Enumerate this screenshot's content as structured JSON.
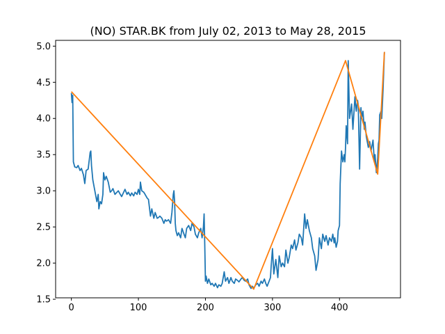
{
  "chart_data": {
    "type": "line",
    "title": "(NO) STAR.BK from July 02, 2013 to May 28, 2015",
    "xlabel": "",
    "ylabel": "",
    "xlim": [
      -23.5,
      491
    ],
    "ylim": [
      1.52,
      5.08
    ],
    "xticks": [
      0,
      100,
      200,
      300,
      400
    ],
    "yticks": [
      1.5,
      2.0,
      2.5,
      3.0,
      3.5,
      4.0,
      4.5,
      5.0
    ],
    "ytick_labels": [
      "1.5",
      "2.0",
      "2.5",
      "3.0",
      "3.5",
      "4.0",
      "4.5",
      "5.0"
    ],
    "grid": false,
    "legend": "none",
    "series": [
      {
        "color": "#1f77b4",
        "x": [
          0,
          1,
          2,
          3,
          5,
          8,
          10,
          13,
          15,
          18,
          20,
          22,
          25,
          27,
          28,
          29,
          30,
          32,
          35,
          38,
          40,
          41,
          43,
          45,
          47,
          48,
          50,
          52,
          55,
          58,
          60,
          62,
          65,
          68,
          70,
          73,
          75,
          78,
          80,
          83,
          85,
          88,
          90,
          93,
          95,
          98,
          100,
          102,
          103,
          105,
          108,
          110,
          113,
          115,
          118,
          120,
          123,
          125,
          128,
          130,
          132,
          135,
          138,
          140,
          142,
          145,
          148,
          150,
          152,
          153,
          154,
          155,
          156,
          158,
          160,
          163,
          165,
          168,
          170,
          172,
          175,
          178,
          180,
          183,
          185,
          188,
          190,
          193,
          195,
          197,
          198,
          199,
          200,
          201,
          203,
          205,
          208,
          210,
          213,
          215,
          218,
          220,
          223,
          225,
          228,
          230,
          233,
          235,
          238,
          240,
          243,
          245,
          248,
          250,
          253,
          255,
          258,
          260,
          263,
          265,
          268,
          270,
          272,
          275,
          278,
          280,
          283,
          285,
          288,
          290,
          292,
          295,
          297,
          298,
          300,
          302,
          305,
          308,
          310,
          313,
          315,
          318,
          320,
          323,
          325,
          328,
          330,
          333,
          335,
          338,
          340,
          343,
          345,
          348,
          350,
          352,
          355,
          358,
          360,
          363,
          365,
          368,
          370,
          373,
          375,
          378,
          380,
          383,
          385,
          388,
          390,
          392,
          393,
          395,
          397,
          398,
          400,
          401,
          403,
          405,
          407,
          408,
          409,
          410,
          412,
          413,
          415,
          418,
          420,
          423,
          425,
          427,
          428,
          430,
          432,
          433,
          435,
          437,
          438,
          440,
          443,
          445,
          447,
          450,
          452,
          453,
          455,
          457,
          458,
          459,
          460,
          462,
          463,
          465,
          467
        ],
        "y": [
          4.35,
          4.22,
          4.32,
          3.4,
          3.33,
          3.32,
          3.35,
          3.28,
          3.31,
          3.22,
          3.1,
          3.28,
          3.3,
          3.45,
          3.53,
          3.55,
          3.35,
          3.15,
          3.0,
          2.85,
          2.95,
          2.75,
          2.85,
          2.82,
          2.95,
          3.25,
          3.15,
          3.2,
          3.12,
          2.98,
          3.0,
          3.03,
          2.95,
          2.98,
          3.0,
          2.95,
          2.92,
          2.98,
          3.02,
          2.95,
          2.98,
          2.93,
          2.97,
          2.93,
          2.98,
          2.95,
          3.02,
          2.95,
          3.12,
          3.0,
          2.98,
          2.95,
          2.9,
          2.88,
          2.65,
          2.75,
          2.62,
          2.7,
          2.62,
          2.63,
          2.65,
          2.62,
          2.55,
          2.6,
          2.58,
          2.6,
          2.55,
          2.7,
          2.95,
          3.0,
          2.85,
          2.55,
          2.45,
          2.38,
          2.42,
          2.35,
          2.48,
          2.4,
          2.35,
          2.48,
          2.52,
          2.45,
          2.55,
          2.5,
          2.4,
          2.35,
          2.42,
          2.48,
          2.35,
          2.5,
          2.68,
          2.25,
          1.75,
          1.82,
          1.72,
          1.78,
          1.7,
          1.72,
          1.68,
          1.72,
          1.66,
          1.7,
          1.68,
          1.72,
          1.88,
          1.75,
          1.8,
          1.72,
          1.8,
          1.75,
          1.72,
          1.78,
          1.76,
          1.74,
          1.78,
          1.8,
          1.76,
          1.75,
          1.78,
          1.7,
          1.65,
          1.68,
          1.65,
          1.7,
          1.72,
          1.68,
          1.75,
          1.72,
          1.78,
          1.72,
          1.68,
          1.75,
          1.8,
          1.95,
          2.2,
          1.85,
          2.05,
          1.8,
          2.1,
          1.95,
          2.0,
          1.95,
          2.18,
          2.0,
          2.08,
          2.25,
          2.2,
          2.32,
          2.18,
          2.28,
          2.4,
          2.35,
          2.25,
          2.68,
          2.48,
          2.6,
          2.45,
          2.35,
          2.2,
          2.1,
          1.9,
          2.05,
          2.35,
          2.2,
          2.4,
          2.3,
          2.38,
          2.25,
          2.35,
          2.3,
          2.4,
          2.28,
          2.35,
          2.22,
          2.3,
          2.45,
          2.52,
          3.1,
          3.55,
          3.4,
          3.5,
          3.4,
          3.6,
          3.9,
          3.65,
          4.8,
          4.0,
          4.2,
          3.85,
          4.3,
          4.1,
          4.25,
          4.18,
          3.3,
          4.15,
          4.0,
          4.1,
          3.85,
          3.95,
          3.75,
          3.6,
          3.68,
          3.55,
          3.7,
          3.4,
          3.5,
          3.25,
          3.45,
          3.65,
          3.7,
          4.05,
          4.1,
          4.0,
          4.4,
          4.92
        ]
      },
      {
        "color": "#ff7f0e",
        "x": [
          0,
          272,
          409,
          457,
          467
        ],
        "y": [
          4.37,
          1.64,
          4.8,
          3.23,
          4.92
        ]
      }
    ]
  }
}
